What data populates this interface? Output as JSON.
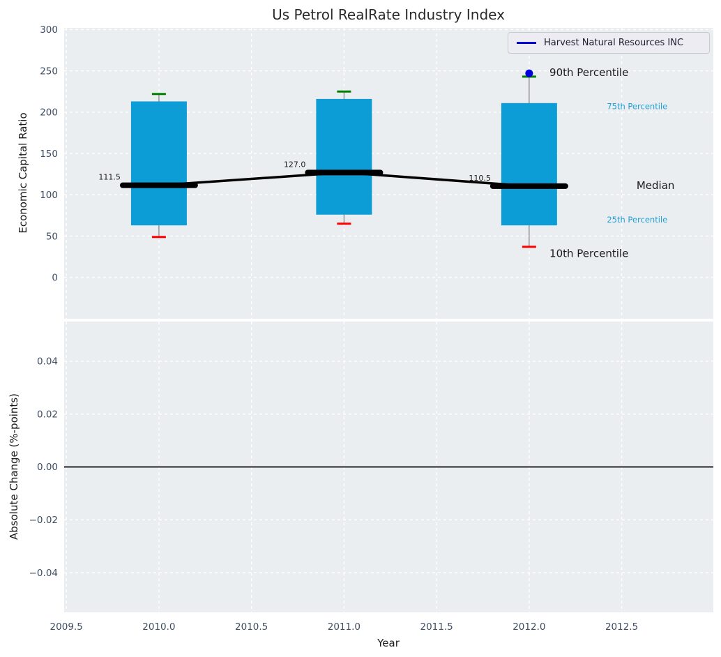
{
  "chart_data": {
    "type": "boxplot-timeseries",
    "title": "Us Petrol RealRate Industry Index",
    "xlabel": "Year",
    "x_axis": {
      "lim": [
        2009.488,
        2012.995
      ],
      "ticks": [
        {
          "v": 2009.5,
          "label": "2009.5"
        },
        {
          "v": 2010.0,
          "label": "2010.0"
        },
        {
          "v": 2010.5,
          "label": "2010.5"
        },
        {
          "v": 2011.0,
          "label": "2011.0"
        },
        {
          "v": 2011.5,
          "label": "2011.5"
        },
        {
          "v": 2012.0,
          "label": "2012.0"
        },
        {
          "v": 2012.5,
          "label": "2012.5"
        }
      ]
    },
    "panels": {
      "capital_ratio": {
        "ylabel": "Economic Capital Ratio",
        "ylim": [
          -50,
          302
        ],
        "yticks": [
          {
            "v": 300,
            "label": "300"
          },
          {
            "v": 250,
            "label": "250"
          },
          {
            "v": 200,
            "label": "200"
          },
          {
            "v": 150,
            "label": "150"
          },
          {
            "v": 100,
            "label": "100"
          },
          {
            "v": 50,
            "label": "50"
          },
          {
            "v": 0,
            "label": "0"
          }
        ],
        "boxes": [
          {
            "year": 2010,
            "p10": 49,
            "p25": 63,
            "median": 111.5,
            "p75": 213,
            "p90": 222,
            "median_label": "111.5"
          },
          {
            "year": 2011,
            "p10": 65,
            "p25": 76,
            "median": 127.0,
            "p75": 216,
            "p90": 225,
            "median_label": "127.0"
          },
          {
            "year": 2012,
            "p10": 37,
            "p25": 63,
            "median": 110.5,
            "p75": 211,
            "p90": 243,
            "median_label": "110.5"
          }
        ],
        "company_point": {
          "year": 2012,
          "value": 247
        },
        "annotations": [
          {
            "text": "90th Percentile",
            "year": 2012.11,
            "value": 248,
            "style": "large"
          },
          {
            "text": "75th Percentile",
            "year": 2012.42,
            "value": 207,
            "style": "small"
          },
          {
            "text": "Median",
            "year": 2012.58,
            "value": 111.5,
            "style": "large"
          },
          {
            "text": "25th Percentile",
            "year": 2012.42,
            "value": 70,
            "style": "small"
          },
          {
            "text": "10th Percentile",
            "year": 2012.11,
            "value": 29,
            "style": "large"
          }
        ]
      },
      "absolute_change": {
        "ylabel": "Absolute Change (%-points)",
        "ylim": [
          -0.055,
          0.055
        ],
        "yticks": [
          {
            "v": 0.04,
            "label": "0.04"
          },
          {
            "v": 0.02,
            "label": "0.02"
          },
          {
            "v": 0.0,
            "label": "0.00"
          },
          {
            "v": -0.02,
            "label": "−0.02"
          },
          {
            "v": -0.04,
            "label": "−0.04"
          }
        ],
        "zero_line": 0.0
      }
    },
    "legend": {
      "entries": [
        {
          "label": "Harvest Natural Resources INC",
          "color": "#0000dd"
        }
      ]
    },
    "colors": {
      "figure_bg": "#ffffff",
      "axes_bg": "#eaeef0",
      "grid": "#ffffff",
      "box_fill": "#0c9cd6",
      "whisker": "#808080",
      "cap_high": "#008000",
      "cap_low": "#ff0000",
      "median_line": "#000000",
      "company": "#0000dd",
      "tick_label": "#3d4d63",
      "annotation_dark": "#1a1a1a",
      "annotation_accent": "#1f9fd6",
      "title": "#2a2a2a",
      "legend_bg": "#ececf2",
      "legend_border": "#c9c9d2",
      "legend_text": "#1c1c30"
    }
  }
}
